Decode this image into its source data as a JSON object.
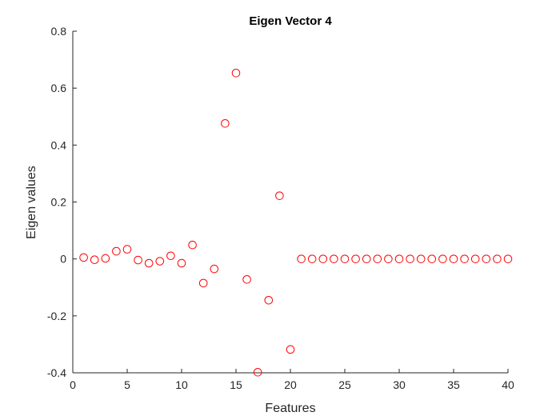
{
  "chart_data": {
    "type": "scatter",
    "title": "Eigen Vector 4",
    "xlabel": "Features",
    "ylabel": "Eigen values",
    "xlim": [
      0,
      40
    ],
    "ylim": [
      -0.4,
      0.8
    ],
    "xticks": [
      0,
      5,
      10,
      15,
      20,
      25,
      30,
      35,
      40
    ],
    "yticks": [
      -0.4,
      -0.2,
      0,
      0.2,
      0.4,
      0.6,
      0.8
    ],
    "xtick_labels": [
      "0",
      "5",
      "10",
      "15",
      "20",
      "25",
      "30",
      "35",
      "40"
    ],
    "ytick_labels": [
      "-0.4",
      "-0.2",
      "0",
      "0.2",
      "0.4",
      "0.6",
      "0.8"
    ],
    "grid": false,
    "marker": "circle-open",
    "marker_color": "#ff0000",
    "series": [
      {
        "x": [
          1,
          2,
          3,
          4,
          5,
          6,
          7,
          8,
          9,
          10,
          11,
          12,
          13,
          14,
          15,
          16,
          17,
          18,
          19,
          20,
          21,
          22,
          23,
          24,
          25,
          26,
          27,
          28,
          29,
          30,
          31,
          32,
          33,
          34,
          35,
          36,
          37,
          38,
          39,
          40
        ],
        "y": [
          0.005,
          -0.003,
          0.002,
          0.027,
          0.034,
          -0.004,
          -0.015,
          -0.008,
          0.011,
          -0.015,
          0.049,
          -0.085,
          -0.035,
          0.476,
          0.653,
          -0.072,
          -0.398,
          -0.145,
          0.222,
          -0.318,
          0,
          0,
          0,
          0,
          0,
          0,
          0,
          0,
          0,
          0,
          0,
          0,
          0,
          0,
          0,
          0,
          0,
          0,
          0,
          0
        ]
      }
    ]
  }
}
